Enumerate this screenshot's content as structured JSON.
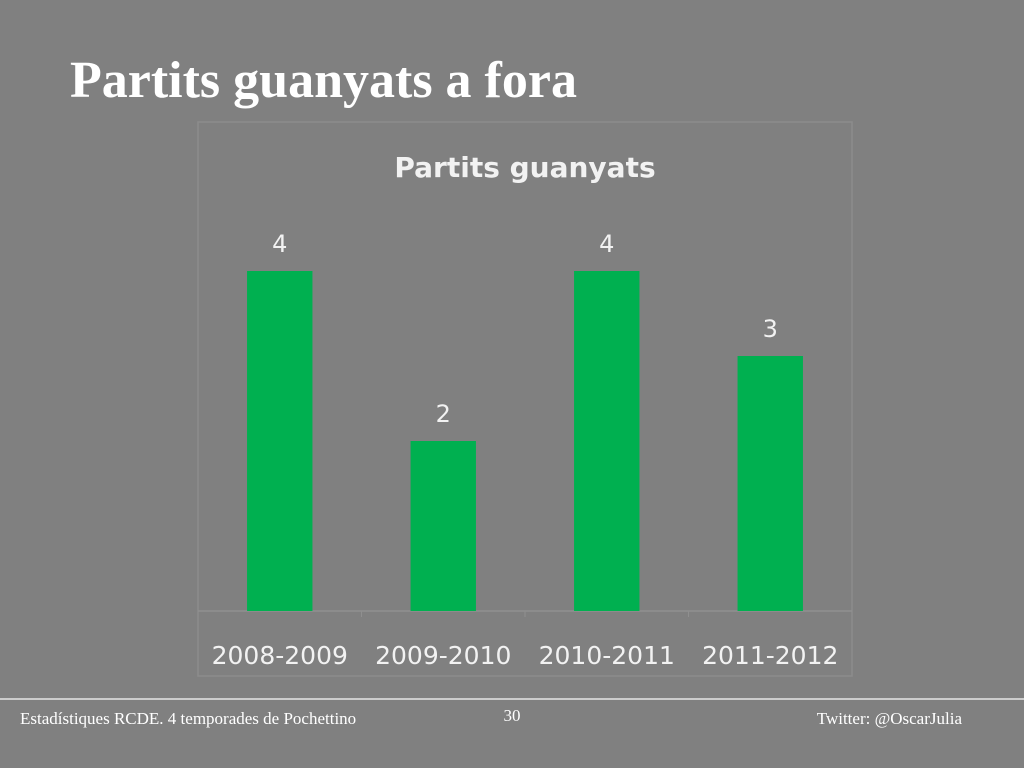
{
  "slide": {
    "title": "Partits guanyats a fora",
    "footer_left": "Estadístiques RCDE. 4 temporades de Pochettino",
    "page_number": "30",
    "footer_right": "Twitter: @OscarJulia"
  },
  "chart_data": {
    "type": "bar",
    "title": "Partits guanyats",
    "categories": [
      "2008-2009",
      "2009-2010",
      "2010-2011",
      "2011-2012"
    ],
    "values": [
      4,
      2,
      4,
      3
    ],
    "color": "#00b050",
    "ylim": [
      0,
      4.5
    ],
    "data_labels": true
  }
}
